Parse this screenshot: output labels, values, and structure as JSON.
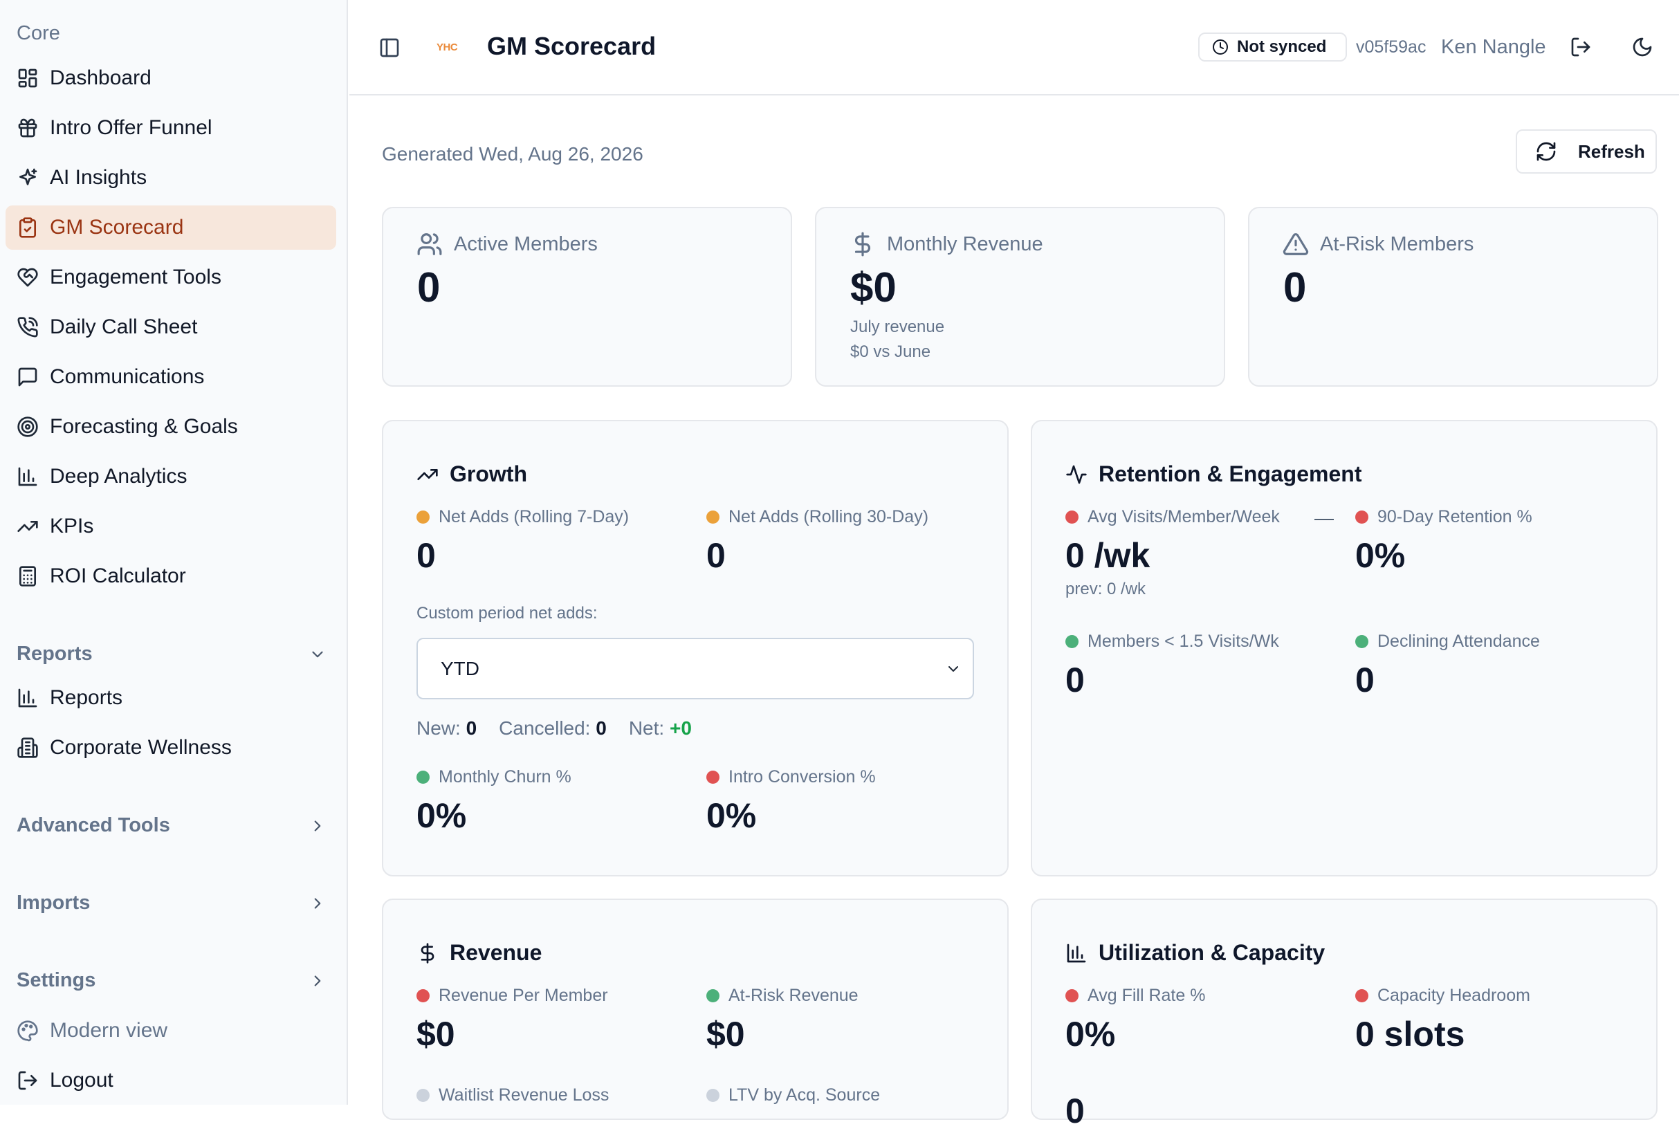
{
  "colors": {
    "accent": "#9a3412",
    "active_bg": "#f7e7dc",
    "dot_red": "#e05252",
    "dot_orange": "#eba13a",
    "dot_green": "#4cb07a",
    "dot_gray": "#cbd2dc",
    "positive": "#16a34a"
  },
  "sidebar": {
    "core_label": "Core",
    "core_items": [
      {
        "label": "Dashboard",
        "icon": "dashboard-icon"
      },
      {
        "label": "Intro Offer Funnel",
        "icon": "gift-icon"
      },
      {
        "label": "AI Insights",
        "icon": "sparkles-icon"
      },
      {
        "label": "GM Scorecard",
        "icon": "clipboard-icon",
        "active": true
      },
      {
        "label": "Engagement Tools",
        "icon": "heart-handshake-icon"
      },
      {
        "label": "Daily Call Sheet",
        "icon": "phone-icon"
      },
      {
        "label": "Communications",
        "icon": "message-icon"
      },
      {
        "label": "Forecasting & Goals",
        "icon": "target-icon"
      },
      {
        "label": "Deep Analytics",
        "icon": "bar-chart-icon"
      },
      {
        "label": "KPIs",
        "icon": "trending-up-icon"
      },
      {
        "label": "ROI Calculator",
        "icon": "calculator-icon"
      }
    ],
    "reports_label": "Reports",
    "reports_items": [
      {
        "label": "Reports",
        "icon": "bar-chart-icon"
      },
      {
        "label": "Corporate Wellness",
        "icon": "building-icon"
      }
    ],
    "advanced_label": "Advanced Tools",
    "imports_label": "Imports",
    "settings_label": "Settings",
    "modern_view": "Modern view",
    "logout": "Logout"
  },
  "header": {
    "logo_text": "YHC",
    "title": "GM Scorecard",
    "sync_status": "Not synced",
    "version": "v05f59ac",
    "user": "Ken Nangle"
  },
  "main": {
    "generated": "Generated Wed, Aug 26, 2026",
    "refresh_label": "Refresh",
    "stats": [
      {
        "label": "Active Members",
        "value": "0",
        "icon": "users-icon"
      },
      {
        "label": "Monthly Revenue",
        "value": "$0",
        "icon": "dollar-icon",
        "sub1": "July revenue",
        "sub2": "$0 vs June"
      },
      {
        "label": "At-Risk Members",
        "value": "0",
        "icon": "alert-triangle-icon"
      }
    ],
    "growth": {
      "title": "Growth",
      "net7_label": "Net Adds (Rolling 7-Day)",
      "net7_value": "0",
      "net30_label": "Net Adds (Rolling 30-Day)",
      "net30_value": "0",
      "custom_label": "Custom period net adds:",
      "period_selected": "YTD",
      "new_label": "New:",
      "new_value": "0",
      "cancelled_label": "Cancelled:",
      "cancelled_value": "0",
      "net_label": "Net:",
      "net_value": "+0",
      "churn_label": "Monthly Churn %",
      "churn_value": "0%",
      "intro_label": "Intro Conversion %",
      "intro_value": "0%"
    },
    "retention": {
      "title": "Retention & Engagement",
      "avg_visits_label": "Avg Visits/Member/Week",
      "avg_visits_value": "0 /wk",
      "avg_visits_prev": "prev: 0 /wk",
      "trend_dash": "—",
      "retention_label": "90-Day Retention %",
      "retention_value": "0%",
      "low_visits_label": "Members < 1.5 Visits/Wk",
      "low_visits_value": "0",
      "declining_label": "Declining Attendance",
      "declining_value": "0"
    },
    "revenue": {
      "title": "Revenue",
      "rpm_label": "Revenue Per Member",
      "rpm_value": "$0",
      "atrisk_label": "At-Risk Revenue",
      "atrisk_value": "$0",
      "waitlist_label": "Waitlist Revenue Loss",
      "ltv_label": "LTV by Acq. Source"
    },
    "utilization": {
      "title": "Utilization & Capacity",
      "fill_label": "Avg Fill Rate %",
      "fill_value": "0%",
      "headroom_label": "Capacity Headroom",
      "headroom_value": "0 slots",
      "third_value": "0"
    }
  }
}
